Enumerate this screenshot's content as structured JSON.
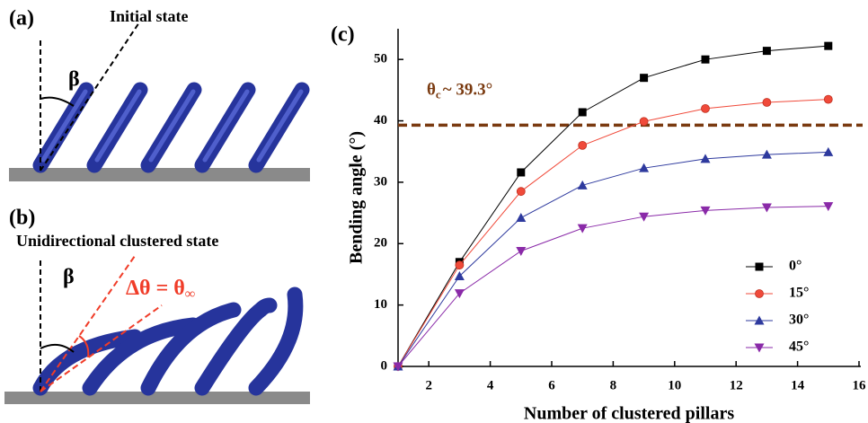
{
  "panels": [
    {
      "label": "(a)",
      "title": "Initial state",
      "angle_symbol": "β"
    },
    {
      "label": "(b)",
      "title": "Unidirectional clustered state",
      "angle_symbol": "β",
      "delta_text": "Δθ = θ",
      "delta_subscript": "∞"
    }
  ],
  "chart_data": {
    "type": "line",
    "panel_label": "(c)",
    "x_label": "Number of clustered pillars",
    "y_label": "Bending angle  (°)",
    "x": [
      1,
      3,
      5,
      7,
      9,
      11,
      13,
      15
    ],
    "series": [
      {
        "name": "0°",
        "color": "#000000",
        "marker": "square",
        "values": [
          0,
          17,
          31.6,
          41.4,
          47,
          50,
          51.4,
          52.2
        ]
      },
      {
        "name": "15°",
        "color": "#f04a3a",
        "marker": "circle",
        "values": [
          0,
          16.5,
          28.5,
          36,
          39.9,
          42,
          43,
          43.5
        ]
      },
      {
        "name": "30°",
        "color": "#2e3a9e",
        "marker": "triangle-up",
        "values": [
          0,
          14.7,
          24.2,
          29.5,
          32.3,
          33.8,
          34.5,
          34.9
        ]
      },
      {
        "name": "45°",
        "color": "#8a2aa8",
        "marker": "triangle-down",
        "values": [
          0,
          11.9,
          18.8,
          22.5,
          24.4,
          25.4,
          25.9,
          26.1
        ]
      }
    ],
    "xlim": [
      1,
      16
    ],
    "ylim": [
      0,
      55
    ],
    "xticks": [
      2,
      4,
      6,
      8,
      10,
      12,
      14,
      16
    ],
    "yticks": [
      0,
      10,
      20,
      30,
      40,
      50
    ],
    "threshold": {
      "value": 39.3,
      "color": "#7a3a10",
      "symbol": "θ",
      "subscript": "c",
      "text": "~ 39.3°"
    },
    "legend": "lower right"
  }
}
